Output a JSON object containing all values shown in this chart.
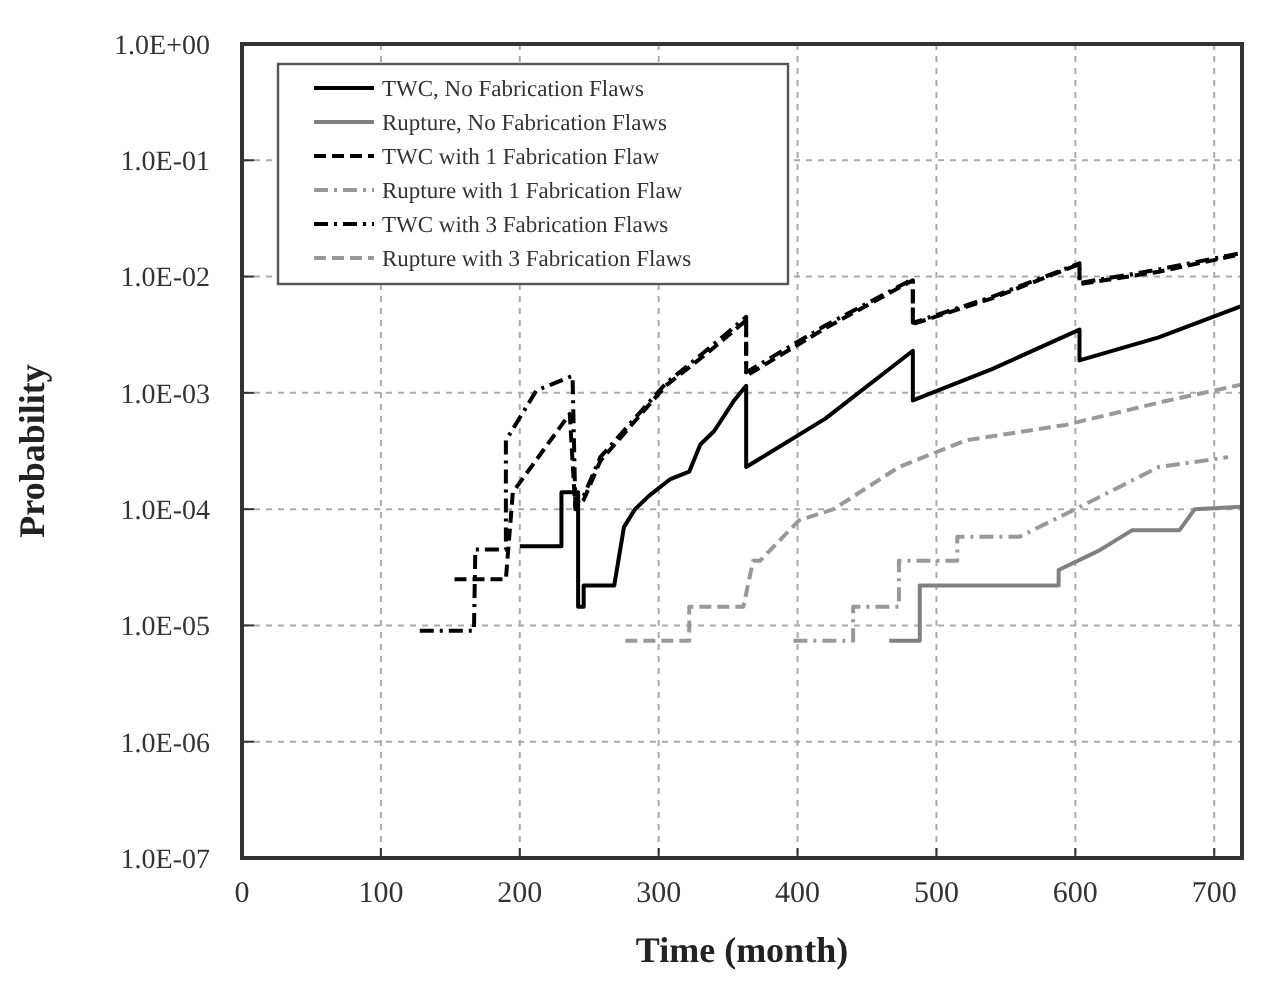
{
  "chart_data": {
    "type": "line",
    "xlabel": "Time (month)",
    "ylabel": "Probability",
    "log": "y",
    "xlim": [
      0,
      720
    ],
    "xticks": [
      0,
      100,
      200,
      300,
      400,
      500,
      600,
      700
    ],
    "ylim": [
      1e-07,
      1
    ],
    "yticks": [
      {
        "value": 1e-07,
        "label": "1.0E-07"
      },
      {
        "value": 1e-06,
        "label": "1.0E-06"
      },
      {
        "value": 1e-05,
        "label": "1.0E-05"
      },
      {
        "value": 0.0001,
        "label": "1.0E-04"
      },
      {
        "value": 0.001,
        "label": "1.0E-03"
      },
      {
        "value": 0.01,
        "label": "1.0E-02"
      },
      {
        "value": 0.1,
        "label": "1.0E-01"
      },
      {
        "value": 1,
        "label": "1.0E+00"
      }
    ],
    "grid": true,
    "legend": "top left",
    "marker": "none",
    "series": [
      {
        "name": "TWC, No Fabrication Flaws",
        "color": "#000000",
        "line_style": "solid",
        "x": [
          200,
          230,
          230,
          242,
          242,
          246,
          246,
          268,
          275,
          283,
          293,
          308,
          322,
          330,
          340,
          354,
          363,
          363,
          420,
          483,
          483,
          540,
          603,
          603,
          660,
          720
        ],
        "values": [
          4.8e-05,
          4.8e-05,
          0.00014,
          0.00014,
          1.45e-05,
          1.45e-05,
          2.2e-05,
          2.2e-05,
          7e-05,
          0.0001,
          0.00013,
          0.00018,
          0.00021,
          0.00036,
          0.00047,
          0.00085,
          0.00115,
          0.00023,
          0.0006,
          0.0023,
          0.00086,
          0.0016,
          0.0035,
          0.0019,
          0.003,
          0.0056
        ]
      },
      {
        "name": "Rupture, No Fabrication Flaws",
        "color": "#808080",
        "line_style": "solid",
        "x": [
          466,
          488,
          488,
          588,
          588,
          617,
          641,
          675,
          686,
          720
        ],
        "values": [
          7.4e-06,
          7.4e-06,
          2.2e-05,
          2.2e-05,
          3e-05,
          4.4e-05,
          6.6e-05,
          6.6e-05,
          0.0001,
          0.000105
        ]
      },
      {
        "name": "TWC with 1 Fabrication Flaw",
        "color": "#000000",
        "line_style": "dashed",
        "x": [
          153,
          190,
          195,
          236,
          240,
          246,
          258,
          305,
          334,
          363,
          363,
          420,
          483,
          483,
          540,
          603,
          603,
          660,
          720
        ],
        "values": [
          2.5e-05,
          2.5e-05,
          0.00014,
          0.00066,
          0.0001,
          0.00012,
          0.00026,
          0.00115,
          0.00215,
          0.0042,
          0.0014,
          0.0036,
          0.0093,
          0.0039,
          0.0065,
          0.0128,
          0.0086,
          0.011,
          0.0156
        ]
      },
      {
        "name": "Rupture with 1 Fabrication Flaw",
        "color": "#999999",
        "line_style": "dashdot",
        "x": [
          397,
          440,
          440,
          473,
          473,
          515,
          515,
          560,
          600,
          660,
          710
        ],
        "values": [
          7.4e-06,
          7.4e-06,
          1.45e-05,
          1.45e-05,
          3.6e-05,
          3.6e-05,
          5.8e-05,
          5.8e-05,
          0.0001,
          0.00023,
          0.00028
        ]
      },
      {
        "name": "TWC with 3 Fabrication Flaws",
        "color": "#000000",
        "line_style": "dashdot",
        "x": [
          128,
          167,
          168,
          190,
          190,
          212,
          238,
          240,
          246,
          258,
          305,
          334,
          363,
          363,
          420,
          483,
          483,
          540,
          603,
          603,
          660,
          720
        ],
        "values": [
          9e-06,
          9e-06,
          4.5e-05,
          4.5e-05,
          0.00039,
          0.00105,
          0.0014,
          0.00011,
          0.00013,
          0.00028,
          0.0012,
          0.0023,
          0.0045,
          0.0015,
          0.0038,
          0.0095,
          0.004,
          0.0067,
          0.013,
          0.0088,
          0.0115,
          0.016
        ]
      },
      {
        "name": "Rupture with 3 Fabrication Flaws",
        "color": "#999999",
        "line_style": "dashed",
        "x": [
          276,
          322,
          322,
          361,
          368,
          373,
          401,
          426,
          473,
          521,
          593,
          665,
          720
        ],
        "values": [
          7.4e-06,
          7.4e-06,
          1.45e-05,
          1.45e-05,
          3.6e-05,
          3.6e-05,
          8e-05,
          0.0001,
          0.00023,
          0.00039,
          0.00053,
          0.00085,
          0.00118
        ]
      }
    ]
  }
}
